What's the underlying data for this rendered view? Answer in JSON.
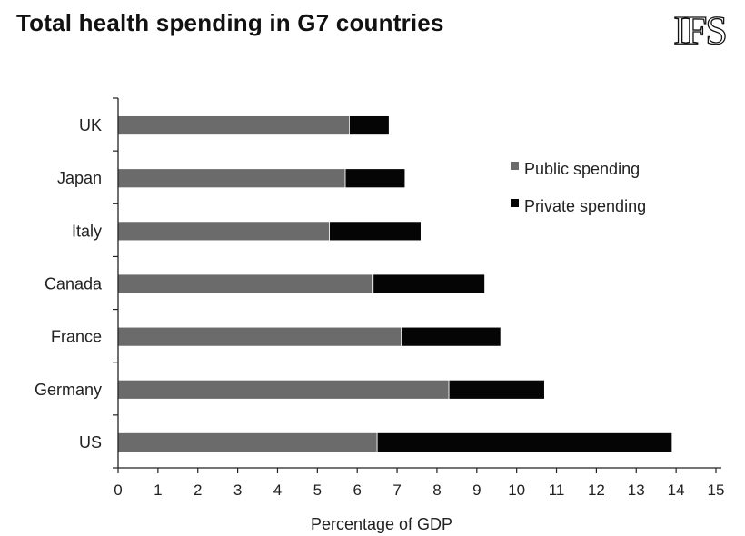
{
  "page": {
    "title": "Total health spending in G7 countries",
    "logo_text": "IFS"
  },
  "colors": {
    "public": "#6b6b6b",
    "private": "#050505",
    "axis": "#222222"
  },
  "chart_data": {
    "type": "bar",
    "orientation": "horizontal",
    "stacked": true,
    "title": "Total health spending in G7 countries",
    "categories": [
      "UK",
      "Japan",
      "Italy",
      "Canada",
      "France",
      "Germany",
      "US"
    ],
    "series": [
      {
        "name": "Public spending",
        "values": [
          5.8,
          5.7,
          5.3,
          6.4,
          7.1,
          8.3,
          6.5
        ]
      },
      {
        "name": "Private spending",
        "values": [
          1.0,
          1.5,
          2.3,
          2.8,
          2.5,
          2.4,
          7.4
        ]
      }
    ],
    "xlabel": "Percentage of GDP",
    "ylabel": "",
    "xlim": [
      0,
      15
    ],
    "xticks": [
      "0",
      "1",
      "2",
      "3",
      "4",
      "5",
      "6",
      "7",
      "8",
      "9",
      "10",
      "11",
      "12",
      "13",
      "14",
      "15"
    ],
    "grid": false,
    "legend_position": "right"
  }
}
